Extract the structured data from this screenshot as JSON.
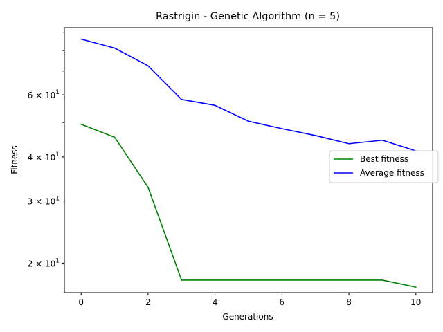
{
  "chart_data": {
    "type": "line",
    "title": "Rastrigin - Genetic Algorithm (n = 5)",
    "xlabel": "Generations",
    "ylabel": "Fitness",
    "x": [
      0,
      1,
      2,
      3,
      4,
      5,
      6,
      7,
      8,
      9,
      10
    ],
    "xlim": [
      -0.5,
      10.5
    ],
    "ylim": [
      16.5,
      93
    ],
    "yscale": "log",
    "xticks": [
      0,
      2,
      4,
      6,
      8,
      10
    ],
    "xtick_labels": [
      "0",
      "2",
      "4",
      "6",
      "8",
      "10"
    ],
    "yticks": [
      20,
      30,
      40,
      60
    ],
    "ytick_labels_base": [
      "2",
      "3",
      "4",
      "6"
    ],
    "ytick_labels_times": "× 10",
    "ytick_labels_exp": "1",
    "minor_yticks": [
      50,
      70,
      80,
      90
    ],
    "grid": false,
    "legend_position": "center-right",
    "series": [
      {
        "name": "Best fitness",
        "color": "#008000",
        "values": [
          49.5,
          45.5,
          32.8,
          17.9,
          17.9,
          17.9,
          17.9,
          17.9,
          17.9,
          17.9,
          17.1
        ]
      },
      {
        "name": "Average fitness",
        "color": "#0000ff",
        "values": [
          86.3,
          81.4,
          72.5,
          58.2,
          56.0,
          50.5,
          48.1,
          46.0,
          43.6,
          44.6,
          41.6
        ]
      }
    ]
  }
}
